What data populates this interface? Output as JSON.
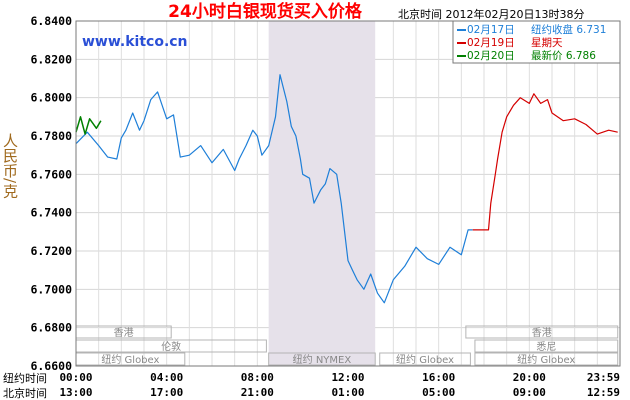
{
  "chart_data": {
    "type": "line",
    "title": "24小时白银现货买入价格",
    "subtitle": "北京时间  2012年02月20日13时38分",
    "watermark": "www.kitco.cn",
    "ylabel": "人民币/克",
    "ylim": [
      6.66,
      6.84
    ],
    "yticks": [
      "6.8400",
      "6.8200",
      "6.8000",
      "6.7800",
      "6.7600",
      "6.7400",
      "6.7200",
      "6.7000",
      "6.6800",
      "6.6600"
    ],
    "xlim": [
      0,
      24
    ],
    "x_row1_label": "纽约时间",
    "x_row2_label": "北京时间",
    "x_ticks_ny": [
      "00:00",
      "04:00",
      "08:00",
      "12:00",
      "16:00",
      "20:00",
      "23:59"
    ],
    "x_ticks_bj": [
      "13:00",
      "17:00",
      "21:00",
      "01:00",
      "05:00",
      "09:00",
      "12:59"
    ],
    "nymex_shade": [
      8.5,
      13.2
    ],
    "legend": [
      {
        "label": "02月17日",
        "desc": "纽约收盘 6.731",
        "color": "#1e7fd8"
      },
      {
        "label": "02月19日",
        "desc": "星期天",
        "color": "#d40000"
      },
      {
        "label": "02月20日",
        "desc": "最新价 6.786",
        "color": "#008000"
      }
    ],
    "sessions": [
      {
        "label": "香港",
        "start": 0,
        "end": 4.2
      },
      {
        "label": "香港",
        "start": 17.2,
        "end": 23.9
      },
      {
        "label": "伦敦",
        "start": 0,
        "end": 8.4
      },
      {
        "label": "悉尼",
        "start": 17.6,
        "end": 23.9
      },
      {
        "label": "纽约 Globex",
        "start": 0,
        "end": 4.8
      },
      {
        "label": "纽约 NYMEX",
        "start": 8.5,
        "end": 13.2
      },
      {
        "label": "纽约 Globex",
        "start": 13.4,
        "end": 17.4
      },
      {
        "label": "纽约 Globex",
        "start": 17.6,
        "end": 23.9
      }
    ],
    "series": [
      {
        "name": "02月17日",
        "color": "#1e7fd8",
        "x": [
          0,
          0.5,
          1,
          1.4,
          1.8,
          2,
          2.2,
          2.5,
          2.8,
          3,
          3.3,
          3.6,
          4,
          4.3,
          4.6,
          5,
          5.5,
          6,
          6.5,
          7,
          7.2,
          7.5,
          7.8,
          8,
          8.2,
          8.5,
          8.8,
          9,
          9.3,
          9.5,
          9.7,
          9.9,
          10,
          10.3,
          10.5,
          10.8,
          11,
          11.2,
          11.5,
          11.7,
          12,
          12.2,
          12.4,
          12.7,
          13,
          13.3,
          13.6,
          14,
          14.5,
          15,
          15.5,
          16,
          16.5,
          17,
          17.3,
          17.5
        ],
        "y": [
          6.776,
          6.782,
          6.775,
          6.769,
          6.768,
          6.779,
          6.783,
          6.792,
          6.783,
          6.788,
          6.799,
          6.803,
          6.789,
          6.791,
          6.769,
          6.77,
          6.775,
          6.766,
          6.773,
          6.762,
          6.768,
          6.775,
          6.783,
          6.78,
          6.77,
          6.775,
          6.79,
          6.812,
          6.798,
          6.785,
          6.78,
          6.768,
          6.76,
          6.758,
          6.745,
          6.752,
          6.755,
          6.763,
          6.76,
          6.745,
          6.715,
          6.71,
          6.705,
          6.7,
          6.708,
          6.698,
          6.693,
          6.705,
          6.712,
          6.722,
          6.716,
          6.713,
          6.722,
          6.718,
          6.731,
          6.731
        ],
        "width": 1.2
      },
      {
        "name": "02月19日",
        "color": "#d40000",
        "x": [
          17.5,
          18.2,
          18.3,
          18.5,
          18.6,
          18.8,
          19,
          19.3,
          19.6,
          20,
          20.2,
          20.5,
          20.8,
          21,
          21.5,
          22,
          22.5,
          23,
          23.5,
          23.9
        ],
        "y": [
          6.731,
          6.731,
          6.745,
          6.76,
          6.768,
          6.782,
          6.79,
          6.796,
          6.8,
          6.797,
          6.802,
          6.797,
          6.799,
          6.792,
          6.788,
          6.789,
          6.786,
          6.781,
          6.783,
          6.782
        ],
        "width": 1.2
      },
      {
        "name": "02月20日",
        "color": "#008000",
        "x": [
          0,
          0.2,
          0.4,
          0.6,
          0.9,
          1.1
        ],
        "y": [
          6.782,
          6.79,
          6.781,
          6.789,
          6.784,
          6.788
        ],
        "width": 1.5
      }
    ]
  }
}
